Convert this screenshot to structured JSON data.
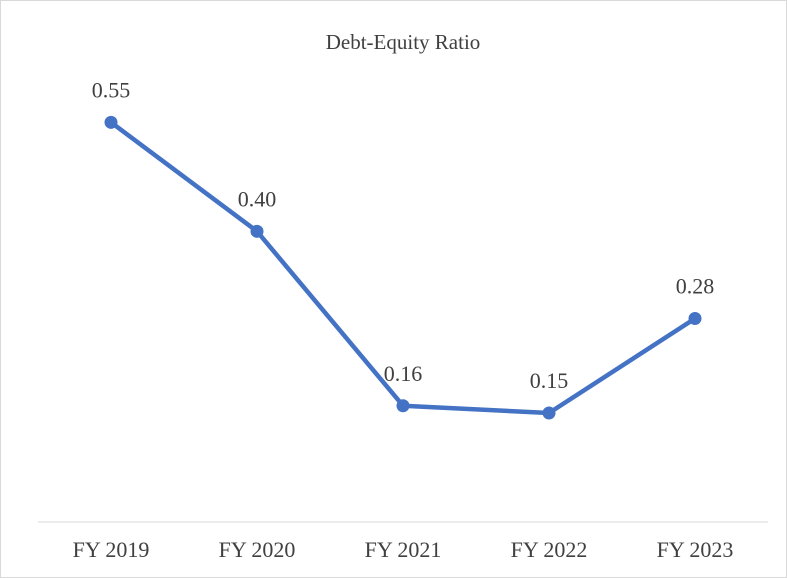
{
  "chart_data": {
    "type": "line",
    "title": "Debt-Equity Ratio",
    "categories": [
      "FY 2019",
      "FY 2020",
      "FY 2021",
      "FY 2022",
      "FY 2023"
    ],
    "values": [
      0.55,
      0.4,
      0.16,
      0.15,
      0.28
    ],
    "value_labels": [
      "0.55",
      "0.40",
      "0.16",
      "0.15",
      "0.28"
    ],
    "color": "#4472c4",
    "ylim": [
      0,
      0.6
    ]
  }
}
